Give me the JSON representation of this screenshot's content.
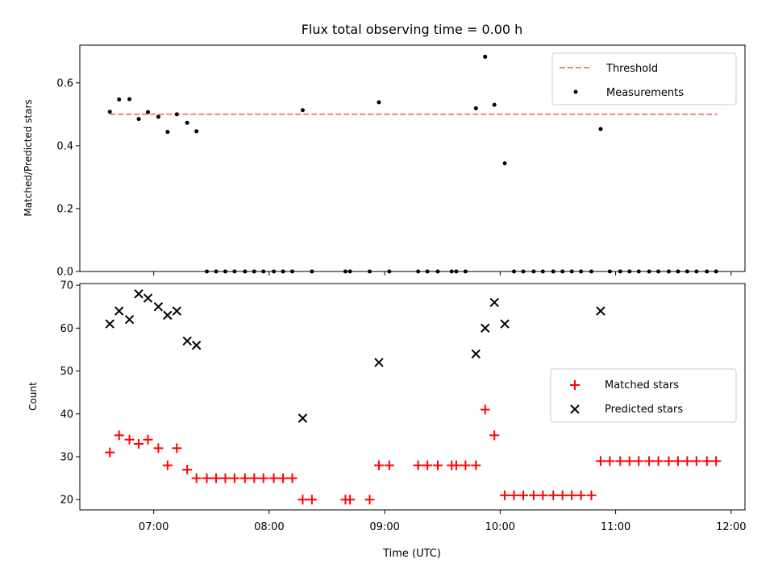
{
  "chart_data": {
    "title": "Flux total observing time = 0.00 h",
    "xlabel": "Time (UTC)",
    "x_ticks": [
      "07:00",
      "08:00",
      "09:00",
      "10:00",
      "11:00",
      "12:00"
    ],
    "x_tick_values": [
      7,
      8,
      9,
      10,
      11,
      12
    ],
    "xlim": [
      6.36,
      12.12
    ],
    "colors": {
      "threshold": "#ff7f7f",
      "measurements": "#000000",
      "matched": "#ff0000",
      "predicted": "#000000"
    },
    "panels": [
      {
        "type": "scatter",
        "ylabel": "Matched/Predicted stars",
        "ylim": [
          0,
          0.72
        ],
        "y_ticks": [
          0.0,
          0.2,
          0.4,
          0.6
        ],
        "y_tick_labels": [
          "0.0",
          "0.2",
          "0.4",
          "0.6"
        ],
        "legend": {
          "position": "top-right",
          "entries": [
            "Threshold",
            "Measurements"
          ]
        },
        "threshold": {
          "name": "Threshold",
          "value": 0.5,
          "x_range": [
            6.62,
            11.88
          ]
        },
        "series": [
          {
            "name": "Measurements",
            "marker": "dot",
            "x": [
              6.62,
              6.7,
              6.79,
              6.87,
              6.95,
              7.04,
              7.12,
              7.2,
              7.29,
              7.37,
              7.46,
              7.54,
              7.62,
              7.7,
              7.79,
              7.87,
              7.95,
              8.04,
              8.12,
              8.2,
              8.29,
              8.37,
              8.66,
              8.7,
              8.87,
              8.95,
              9.04,
              9.29,
              9.37,
              9.46,
              9.58,
              9.62,
              9.7,
              9.79,
              9.87,
              9.95,
              10.04,
              10.12,
              10.2,
              10.29,
              10.37,
              10.46,
              10.54,
              10.62,
              10.7,
              10.79,
              10.87,
              10.95,
              11.04,
              11.12,
              11.2,
              11.29,
              11.37,
              11.46,
              11.54,
              11.62,
              11.7,
              11.79,
              11.87
            ],
            "y": [
              0.508,
              0.547,
              0.548,
              0.485,
              0.507,
              0.492,
              0.444,
              0.5,
              0.473,
              0.446,
              0,
              0,
              0,
              0,
              0,
              0,
              0,
              0,
              0,
              0,
              0.513,
              0,
              0,
              0,
              0,
              0.538,
              0,
              0,
              0,
              0,
              0,
              0,
              0,
              0.519,
              0.683,
              0.53,
              0.344,
              0,
              0,
              0,
              0,
              0,
              0,
              0,
              0,
              0,
              0.453,
              0,
              0,
              0,
              0,
              0,
              0,
              0,
              0,
              0,
              0,
              0,
              0
            ]
          }
        ]
      },
      {
        "type": "scatter",
        "ylabel": "Count",
        "ylim": [
          17.6,
          70.4
        ],
        "y_ticks": [
          20,
          30,
          40,
          50,
          60,
          70
        ],
        "y_tick_labels": [
          "20",
          "30",
          "40",
          "50",
          "60",
          "70"
        ],
        "legend": {
          "position": "center-right",
          "entries": [
            "Matched stars",
            "Predicted stars"
          ]
        },
        "series": [
          {
            "name": "Matched stars",
            "marker": "plus",
            "x": [
              6.62,
              6.7,
              6.79,
              6.87,
              6.95,
              7.04,
              7.12,
              7.2,
              7.29,
              7.37,
              7.46,
              7.54,
              7.62,
              7.7,
              7.79,
              7.87,
              7.95,
              8.04,
              8.12,
              8.2,
              8.29,
              8.37,
              8.66,
              8.7,
              8.87,
              8.95,
              9.04,
              9.29,
              9.37,
              9.46,
              9.58,
              9.62,
              9.7,
              9.79,
              9.87,
              9.95,
              10.04,
              10.12,
              10.2,
              10.29,
              10.37,
              10.46,
              10.54,
              10.62,
              10.7,
              10.79,
              10.87,
              10.95,
              11.04,
              11.12,
              11.2,
              11.29,
              11.37,
              11.46,
              11.54,
              11.62,
              11.7,
              11.79,
              11.87
            ],
            "y": [
              31,
              35,
              34,
              33,
              34,
              32,
              28,
              32,
              27,
              25,
              25,
              25,
              25,
              25,
              25,
              25,
              25,
              25,
              25,
              25,
              20,
              20,
              20,
              20,
              20,
              28,
              28,
              28,
              28,
              28,
              28,
              28,
              28,
              28,
              41,
              35,
              21,
              21,
              21,
              21,
              21,
              21,
              21,
              21,
              21,
              21,
              29,
              29,
              29,
              29,
              29,
              29,
              29,
              29,
              29,
              29,
              29,
              29,
              29
            ]
          },
          {
            "name": "Predicted stars",
            "marker": "x",
            "x": [
              6.62,
              6.7,
              6.79,
              6.87,
              6.95,
              7.04,
              7.12,
              7.2,
              7.29,
              7.37,
              8.29,
              8.95,
              9.79,
              9.87,
              9.95,
              10.04,
              10.87
            ],
            "y": [
              61,
              64,
              62,
              68,
              67,
              65,
              63,
              64,
              57,
              56,
              39,
              52,
              54,
              60,
              66,
              61,
              64
            ]
          }
        ]
      }
    ]
  }
}
